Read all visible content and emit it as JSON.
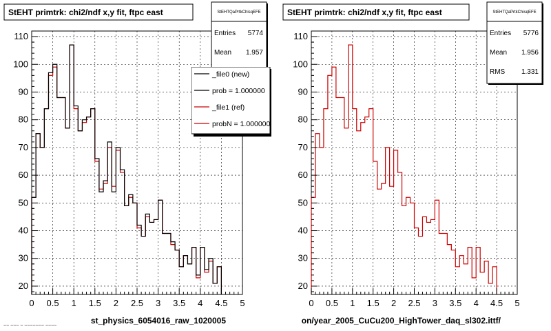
{
  "chart_data": [
    {
      "type": "histogram",
      "title": "StEHT primtrk: chi2/ndf x,y fit, ftpc east",
      "xlabel": "st_physics_6054016_raw_1020005",
      "ylabel": "",
      "xlim": [
        0,
        5
      ],
      "ylim": [
        17,
        112
      ],
      "x_ticks": [
        "0",
        "0.5",
        "1",
        "1.5",
        "2",
        "2.5",
        "3",
        "3.5",
        "4",
        "4.5",
        "5"
      ],
      "y_ticks": [
        "20",
        "30",
        "40",
        "50",
        "60",
        "70",
        "80",
        "90",
        "100",
        "110"
      ],
      "grid": true,
      "bin_width": 0.1,
      "stats_box": {
        "name": "StEHTQaPrtkChisqEFE",
        "entries_label": "Entries",
        "entries": "5774",
        "mean_label": "Mean",
        "mean": "1.957"
      },
      "legend": {
        "placement": "top-right",
        "entries": [
          "_file0 (new)",
          "prob = 1.000000",
          "_file1 (ref)",
          "probN = 1.000000"
        ]
      },
      "series": [
        {
          "name": "_file0 (new)",
          "color": "#000000",
          "values": [
            52,
            75,
            70,
            84,
            97,
            100,
            88,
            88,
            77,
            107,
            85,
            76,
            80,
            81,
            84,
            66,
            54,
            58,
            72,
            54,
            70,
            62,
            49,
            53,
            50,
            42,
            38,
            46,
            43,
            44,
            51,
            39,
            39,
            36,
            33,
            27,
            31,
            28,
            34,
            24,
            34,
            26,
            30,
            21,
            27
          ]
        },
        {
          "name": "_file1 (ref)",
          "color": "#cc0000",
          "values": [
            52,
            75,
            70,
            84,
            96,
            99,
            88,
            88,
            77,
            107,
            84,
            76,
            79,
            81,
            84,
            65,
            55,
            57,
            70,
            56,
            69,
            61,
            49,
            52,
            50,
            41,
            38,
            45,
            43,
            44,
            51,
            39,
            39,
            35,
            33,
            27,
            31,
            28,
            34,
            23,
            34,
            25,
            29,
            21,
            27
          ]
        }
      ]
    },
    {
      "type": "histogram",
      "title": "StEHT primtrk: chi2/ndf x,y fit, ftpc east",
      "xlabel": "on/year_2005_CuCu200_HighTower_daq_sl302.ittf/",
      "ylabel": "",
      "xlim": [
        0,
        5
      ],
      "ylim": [
        17,
        112
      ],
      "x_ticks": [
        "0",
        "0.5",
        "1",
        "1.5",
        "2",
        "2.5",
        "3",
        "3.5",
        "4",
        "4.5",
        "5"
      ],
      "y_ticks": [
        "20",
        "30",
        "40",
        "50",
        "60",
        "70",
        "80",
        "90",
        "100",
        "110"
      ],
      "grid": true,
      "bin_width": 0.1,
      "stats_box": {
        "name": "StEHTQaPrtkChisqEFE",
        "entries_label": "Entries",
        "entries": "5776",
        "mean_label": "Mean",
        "mean": "1.956",
        "rms_label": "RMS",
        "rms": "1.331"
      },
      "series": [
        {
          "name": "",
          "color": "#cc0000",
          "values": [
            52,
            75,
            70,
            84,
            96,
            99,
            88,
            88,
            77,
            107,
            84,
            76,
            79,
            81,
            84,
            65,
            55,
            57,
            70,
            56,
            69,
            61,
            49,
            52,
            50,
            41,
            38,
            45,
            43,
            44,
            51,
            39,
            39,
            35,
            33,
            27,
            31,
            28,
            34,
            23,
            34,
            25,
            29,
            21,
            27
          ]
        }
      ]
    }
  ],
  "footer": {
    "note": "~~ ~~~ ~ ~~~~~~~ ~~~~"
  }
}
